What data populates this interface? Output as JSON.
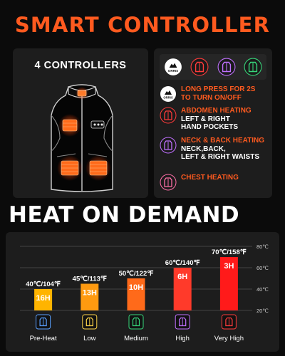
{
  "header": {
    "title": "SMART CONTROLLER"
  },
  "left_panel": {
    "title": "4 CONTROLLERS"
  },
  "controller_icons": [
    {
      "name": "power-button-icon",
      "label": "ORRIS",
      "color": "#ffffff"
    },
    {
      "name": "vest-red-icon",
      "color": "#ff3b3b"
    },
    {
      "name": "vest-purple-icon",
      "color": "#c070ff"
    },
    {
      "name": "vest-green-icon",
      "color": "#37d67a"
    }
  ],
  "features": [
    {
      "icon": "power-button-icon",
      "icon_label": "ORRIS",
      "lines": [
        {
          "text": "LONG PRESS FOR 2S",
          "color": "orange"
        },
        {
          "text": "TO TURN ON/OFF",
          "color": "orange"
        }
      ]
    },
    {
      "icon": "vest-red-icon",
      "color": "#ff3b3b",
      "lines": [
        {
          "text": "ABDOMEN HEATING",
          "color": "orange"
        },
        {
          "text": "LEFT & RIGHT",
          "color": "white"
        },
        {
          "text": "HAND POCKETS",
          "color": "white"
        }
      ]
    },
    {
      "icon": "vest-purple-icon",
      "color": "#c070ff",
      "lines": [
        {
          "text": "NECK & BACK HEATING",
          "color": "orange"
        },
        {
          "text": "NECK,BACK,",
          "color": "white"
        },
        {
          "text": "LEFT & RIGHT WAISTS",
          "color": "white"
        }
      ]
    },
    {
      "icon": "vest-pink-icon",
      "color": "#ff6fa8",
      "lines": [
        {
          "text": "CHEST HEATING",
          "color": "orange"
        }
      ]
    }
  ],
  "heat_section": {
    "title": "HEAT ON DEMAND"
  },
  "chart_data": {
    "type": "bar",
    "categories": [
      "Pre-Heat",
      "Low",
      "Medium",
      "High",
      "Very High"
    ],
    "values": [
      40,
      45,
      50,
      60,
      70
    ],
    "value_labels": [
      "40℃/104℉",
      "45℃/113℉",
      "50℃/122℉",
      "60℃/140℉",
      "70℃/158℉"
    ],
    "duration_labels": [
      "16H",
      "13H",
      "10H",
      "6H",
      "3H"
    ],
    "bar_colors": [
      "#ffb400",
      "#ff9a10",
      "#ff6a1a",
      "#ff3a2a",
      "#ff1a1a"
    ],
    "icon_colors": [
      "#5aa0ff",
      "#ffd54a",
      "#37d67a",
      "#c070ff",
      "#ff3b3b"
    ],
    "y_ticks": [
      20,
      40,
      60,
      80
    ],
    "y_tick_labels": [
      "20℃",
      "40℃",
      "60℃",
      "80℃"
    ],
    "ylim": [
      20,
      80
    ],
    "grid": true
  }
}
